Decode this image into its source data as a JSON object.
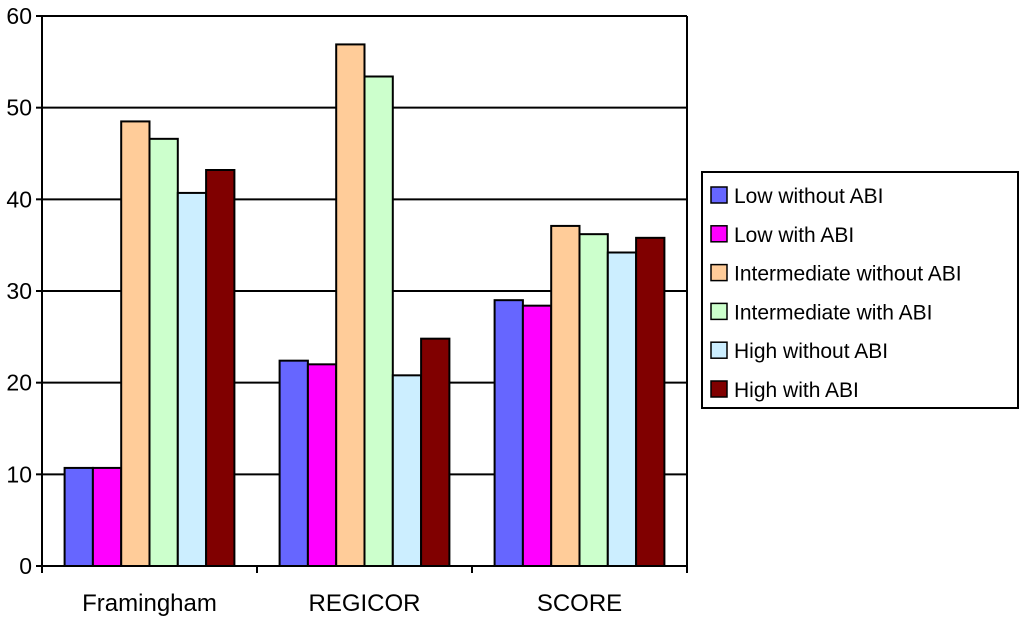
{
  "chart_data": {
    "type": "bar",
    "title": "",
    "xlabel": "",
    "ylabel": "",
    "ylim": [
      0,
      60
    ],
    "yticks": [
      0,
      10,
      20,
      30,
      40,
      50,
      60
    ],
    "grid": true,
    "legend_position": "right",
    "categories": [
      "Framingham",
      "REGICOR",
      "SCORE"
    ],
    "series": [
      {
        "name": "Low without ABI",
        "color": "#6666ff",
        "values": [
          10.7,
          22.4,
          29.0
        ]
      },
      {
        "name": "Low with ABI",
        "color": "#ff00ff",
        "values": [
          10.7,
          22.0,
          28.4
        ]
      },
      {
        "name": "Intermediate without ABI",
        "color": "#ffcc99",
        "values": [
          48.5,
          56.9,
          37.1
        ]
      },
      {
        "name": "Intermediate with ABI",
        "color": "#ccffcc",
        "values": [
          46.6,
          53.4,
          36.2
        ]
      },
      {
        "name": "High without ABI",
        "color": "#cceeff",
        "values": [
          40.7,
          20.8,
          34.2
        ]
      },
      {
        "name": "High with ABI",
        "color": "#800000",
        "values": [
          43.2,
          24.8,
          35.8
        ]
      }
    ]
  }
}
